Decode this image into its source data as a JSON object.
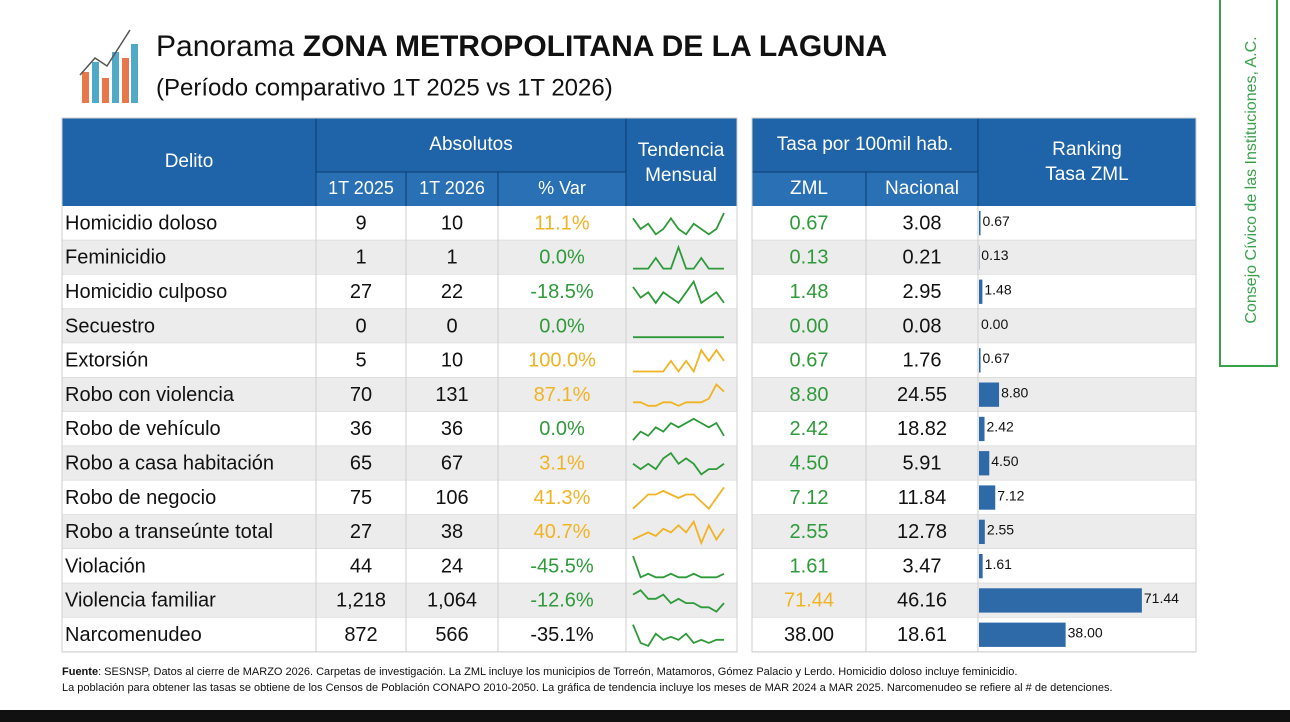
{
  "header": {
    "title_light": "Panorama",
    "title_bold": "ZONA METROPOLITANA DE LA LAGUNA",
    "subtitle": "(Período comparativo 1T 2025 vs 1T 2026)"
  },
  "side_label": "Consejo Cívico de las Instituciones, A.C.",
  "table": {
    "headers": {
      "delito": "Delito",
      "absolutos": "Absolutos",
      "t2025": "1T 2025",
      "t2026": "1T 2026",
      "var": "% Var",
      "tendencia": [
        "Tendencia",
        "Mensual"
      ],
      "tasa": "Tasa por 100mil hab.",
      "zml": "ZML",
      "nacional": "Nacional",
      "ranking": [
        "Ranking",
        "Tasa ZML"
      ]
    },
    "rows": [
      {
        "delito": "Homicidio doloso",
        "t2025": "9",
        "t2026": "10",
        "var": "11.1%",
        "var_color": "#f0b323",
        "trend": [
          5,
          3,
          4,
          2,
          3,
          5,
          3,
          2,
          4,
          3,
          2,
          3,
          6
        ],
        "trend_color": "#2e9a3a",
        "zml": "0.67",
        "zml_color": "#2e9a3a",
        "nacional": "3.08"
      },
      {
        "delito": "Feminicidio",
        "t2025": "1",
        "t2026": "1",
        "var": "0.0%",
        "var_color": "#2e9a3a",
        "trend": [
          0,
          0,
          0,
          1,
          0,
          0,
          2,
          0,
          0,
          1,
          0,
          0,
          0
        ],
        "trend_color": "#2e9a3a",
        "zml": "0.13",
        "zml_color": "#2e9a3a",
        "nacional": "0.21"
      },
      {
        "delito": "Homicidio culposo",
        "t2025": "27",
        "t2026": "22",
        "var": "-18.5%",
        "var_color": "#2e9a3a",
        "trend": [
          5,
          3,
          4,
          2,
          4,
          3,
          2,
          4,
          6,
          2,
          3,
          4,
          2
        ],
        "trend_color": "#2e9a3a",
        "zml": "1.48",
        "zml_color": "#2e9a3a",
        "nacional": "2.95"
      },
      {
        "delito": "Secuestro",
        "t2025": "0",
        "t2026": "0",
        "var": "0.0%",
        "var_color": "#2e9a3a",
        "trend": [
          0,
          0,
          0,
          0,
          0,
          0,
          0,
          0,
          0,
          0,
          0,
          0,
          0
        ],
        "trend_color": "#2e9a3a",
        "zml": "0.00",
        "zml_color": "#2e9a3a",
        "nacional": "0.08"
      },
      {
        "delito": "Extorsión",
        "t2025": "5",
        "t2026": "10",
        "var": "100.0%",
        "var_color": "#f0b323",
        "trend": [
          1,
          1,
          1,
          1,
          1,
          2,
          1,
          2,
          1,
          3,
          2,
          3,
          2
        ],
        "trend_color": "#f0b323",
        "zml": "0.67",
        "zml_color": "#2e9a3a",
        "nacional": "1.76"
      },
      {
        "delito": "Robo con violencia",
        "t2025": "70",
        "t2026": "131",
        "var": "87.1%",
        "var_color": "#f0b323",
        "trend": [
          4,
          4,
          3,
          3,
          4,
          4,
          3,
          4,
          4,
          4,
          5,
          9,
          7
        ],
        "trend_color": "#f0b323",
        "zml": "8.80",
        "zml_color": "#2e9a3a",
        "nacional": "24.55"
      },
      {
        "delito": "Robo de vehículo",
        "t2025": "36",
        "t2026": "36",
        "var": "0.0%",
        "var_color": "#2e9a3a",
        "trend": [
          2,
          4,
          3,
          5,
          4,
          6,
          5,
          6,
          7,
          6,
          5,
          6,
          3
        ],
        "trend_color": "#2e9a3a",
        "zml": "2.42",
        "zml_color": "#2e9a3a",
        "nacional": "18.82"
      },
      {
        "delito": "Robo a casa habitación",
        "t2025": "65",
        "t2026": "67",
        "var": "3.1%",
        "var_color": "#f0b323",
        "trend": [
          5,
          4,
          5,
          4,
          6,
          7,
          5,
          6,
          5,
          3,
          4,
          4,
          5
        ],
        "trend_color": "#2e9a3a",
        "zml": "4.50",
        "zml_color": "#2e9a3a",
        "nacional": "5.91"
      },
      {
        "delito": "Robo de negocio",
        "t2025": "75",
        "t2026": "106",
        "var": "41.3%",
        "var_color": "#f0b323",
        "trend": [
          3,
          5,
          7,
          7,
          8,
          7,
          6,
          7,
          7,
          5,
          3,
          6,
          9
        ],
        "trend_color": "#f0b323",
        "zml": "7.12",
        "zml_color": "#2e9a3a",
        "nacional": "11.84"
      },
      {
        "delito": "Robo a transeúnte total",
        "t2025": "27",
        "t2026": "38",
        "var": "40.7%",
        "var_color": "#f0b323",
        "trend": [
          2,
          3,
          4,
          3,
          5,
          4,
          6,
          4,
          7,
          1,
          6,
          2,
          5
        ],
        "trend_color": "#f0b323",
        "zml": "2.55",
        "zml_color": "#2e9a3a",
        "nacional": "12.78"
      },
      {
        "delito": "Violación",
        "t2025": "44",
        "t2026": "24",
        "var": "-45.5%",
        "var_color": "#2e9a3a",
        "trend": [
          8,
          2,
          3,
          2,
          2,
          3,
          2,
          2,
          3,
          2,
          2,
          2,
          3
        ],
        "trend_color": "#2e9a3a",
        "zml": "1.61",
        "zml_color": "#2e9a3a",
        "nacional": "3.47"
      },
      {
        "delito": "Violencia familiar",
        "t2025": "1,218",
        "t2026": "1,064",
        "var": "-12.6%",
        "var_color": "#2e9a3a",
        "trend": [
          6,
          7,
          5,
          5,
          6,
          4,
          5,
          4,
          4,
          3,
          3,
          2,
          4
        ],
        "trend_color": "#2e9a3a",
        "zml": "71.44",
        "zml_color": "#f0b323",
        "nacional": "46.16"
      },
      {
        "delito": "Narcomenudeo",
        "t2025": "872",
        "t2026": "566",
        "var": "-35.1%",
        "var_color": "#111111",
        "trend": [
          8,
          2,
          1,
          5,
          3,
          4,
          3,
          5,
          2,
          3,
          2,
          3,
          3
        ],
        "trend_color": "#2e9a3a",
        "zml": "38.00",
        "zml_color": "#111111",
        "nacional": "18.61"
      }
    ]
  },
  "footer": {
    "source_label": "Fuente",
    "line1": ": SESNSP, Datos al cierre de MARZO 2026. Carpetas de investigación. La ZML incluye los municipios de Torreón, Matamoros, Gómez Palacio y Lerdo. Homicidio doloso incluye feminicidio.",
    "line2": "La población para obtener las tasas se obtiene de los Censos de Población CONAPO 2010-2050. La gráfica de tendencia incluye los meses de MAR 2024 a MAR 2025. Narcomenudeo se refiere al # de detenciones."
  }
}
